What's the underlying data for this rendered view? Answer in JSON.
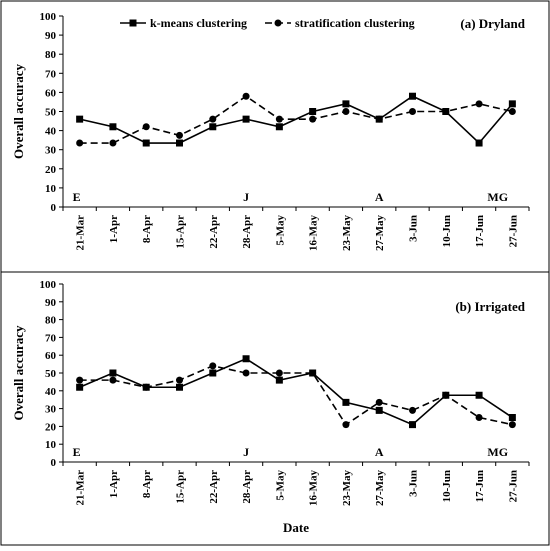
{
  "chart_data": [
    {
      "type": "line",
      "title": "(a) Dryland",
      "xlabel": "",
      "ylabel": "Overall accuracy",
      "ylim": [
        0,
        100
      ],
      "yticks": [
        0,
        10,
        20,
        30,
        40,
        50,
        60,
        70,
        80,
        90,
        100
      ],
      "categories": [
        "21-Mar",
        "1-Apr",
        "8-Apr",
        "15-Apr",
        "22-Apr",
        "28-Apr",
        "5-May",
        "16-May",
        "23-May",
        "27-May",
        "3-Jun",
        "10-Jun",
        "17-Jun",
        "27-Jun"
      ],
      "series": [
        {
          "name": "k-means clustering",
          "marker": "square",
          "dash": "solid",
          "color": "#000000",
          "values": [
            46,
            42,
            33.5,
            33.5,
            42,
            46,
            42,
            50,
            54,
            46,
            58,
            50,
            33.5,
            54
          ]
        },
        {
          "name": "stratification clustering",
          "marker": "circle",
          "dash": "dashed",
          "color": "#000000",
          "values": [
            33.5,
            33.5,
            42,
            37.5,
            46,
            58,
            46,
            46,
            50,
            46,
            50,
            50,
            54,
            50
          ]
        }
      ],
      "legend": {
        "position": "top",
        "items": [
          "k-means clustering",
          "stratification clustering"
        ]
      },
      "annotations": [
        {
          "text": "E",
          "category": "21-Mar"
        },
        {
          "text": "J",
          "category": "28-Apr"
        },
        {
          "text": "A",
          "category": "27-May"
        },
        {
          "text": "MG",
          "category": "17-Jun"
        }
      ],
      "grid": false
    },
    {
      "type": "line",
      "title": "(b) Irrigated",
      "xlabel": "Date",
      "ylabel": "Overall accuracy",
      "ylim": [
        0,
        100
      ],
      "yticks": [
        0,
        10,
        20,
        30,
        40,
        50,
        60,
        70,
        80,
        90,
        100
      ],
      "categories": [
        "21-Mar",
        "1-Apr",
        "8-Apr",
        "15-Apr",
        "22-Apr",
        "28-Apr",
        "5-May",
        "16-May",
        "23-May",
        "27-May",
        "3-Jun",
        "10-Jun",
        "17-Jun",
        "27-Jun"
      ],
      "series": [
        {
          "name": "k-means clustering",
          "marker": "square",
          "dash": "solid",
          "color": "#000000",
          "values": [
            42,
            50,
            42,
            42,
            50,
            58,
            46,
            50,
            33.5,
            29,
            21,
            37.5,
            37.5,
            25
          ]
        },
        {
          "name": "stratification clustering",
          "marker": "circle",
          "dash": "dashed",
          "color": "#000000",
          "values": [
            46,
            46,
            42,
            46,
            54,
            50,
            50,
            50,
            21,
            33.5,
            29,
            37.5,
            25,
            21
          ]
        }
      ],
      "annotations": [
        {
          "text": "E",
          "category": "21-Mar"
        },
        {
          "text": "J",
          "category": "28-Apr"
        },
        {
          "text": "A",
          "category": "27-May"
        },
        {
          "text": "MG",
          "category": "17-Jun"
        }
      ],
      "grid": false
    }
  ]
}
